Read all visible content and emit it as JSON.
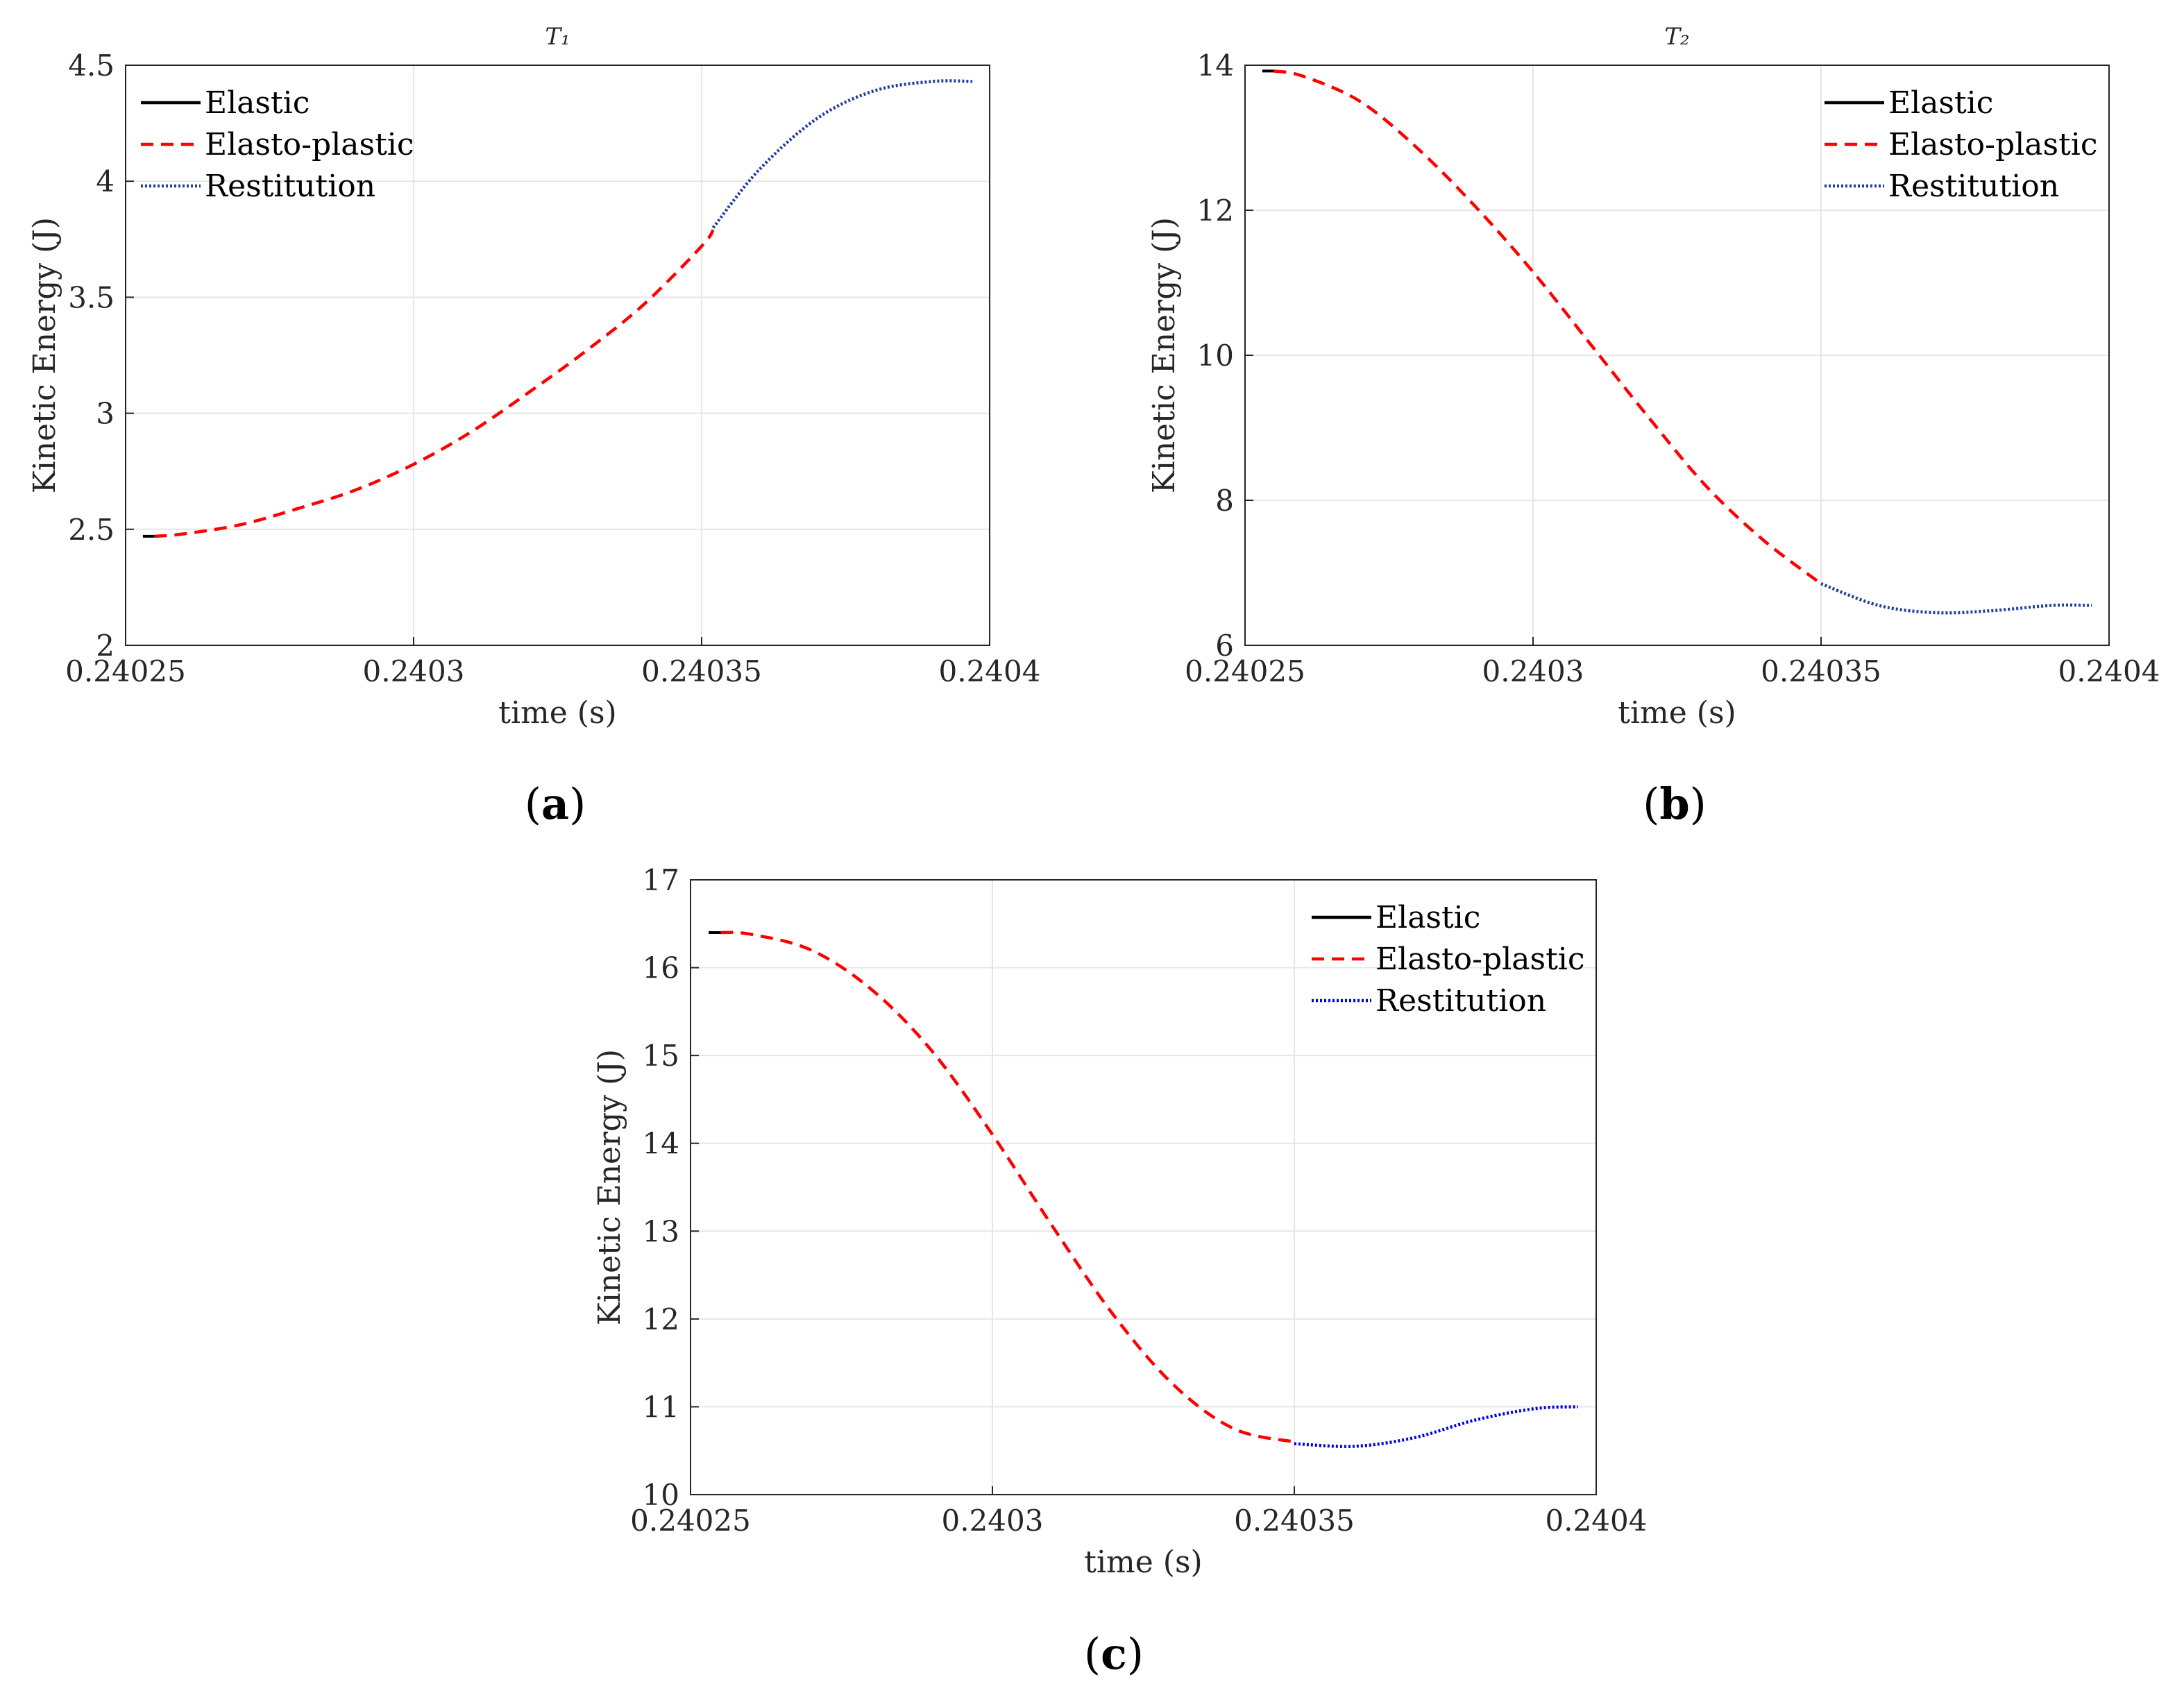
{
  "figure": {
    "captions": [
      "(a)",
      "(b)",
      "(c)"
    ],
    "caption_letters": [
      "a",
      "b",
      "c"
    ]
  },
  "chart_data": [
    {
      "type": "line",
      "panel": "(a)",
      "title": "T₁",
      "xlabel": "time (s)",
      "ylabel": "Kinetic Energy (J)",
      "xlim": [
        0.24025,
        0.2404
      ],
      "ylim": [
        2,
        4.5
      ],
      "xticks": [
        0.24025,
        0.2403,
        0.24035,
        0.2404
      ],
      "xtick_labels": [
        "0.24025",
        "0.2403",
        "0.24035",
        "0.2404"
      ],
      "yticks": [
        2,
        2.5,
        3,
        3.5,
        4,
        4.5
      ],
      "ytick_labels": [
        "2",
        "2.5",
        "3",
        "3.5",
        "4",
        "4.5"
      ],
      "grid": true,
      "legend_position": "top-left",
      "series": [
        {
          "name": "Elastic",
          "color": "#000000",
          "style": "solid",
          "x": [
            0.240253,
            0.240255
          ],
          "y": [
            2.47,
            2.47
          ]
        },
        {
          "name": "Elasto-plastic",
          "color": "#ff0000",
          "style": "dashed",
          "x": [
            0.240255,
            0.24026,
            0.24027,
            0.24028,
            0.24029,
            0.2403,
            0.24031,
            0.24032,
            0.24033,
            0.24034,
            0.24035,
            0.240352
          ],
          "y": [
            2.47,
            2.48,
            2.52,
            2.59,
            2.67,
            2.78,
            2.92,
            3.09,
            3.27,
            3.47,
            3.72,
            3.79
          ]
        },
        {
          "name": "Restitution",
          "color": "#1f3fa0",
          "style": "dotted",
          "x": [
            0.240352,
            0.24036,
            0.24037,
            0.24038,
            0.24039,
            0.240397
          ],
          "y": [
            3.8,
            4.05,
            4.27,
            4.39,
            4.43,
            4.43
          ]
        }
      ]
    },
    {
      "type": "line",
      "panel": "(b)",
      "title": "T₂",
      "xlabel": "time (s)",
      "ylabel": "Kinetic Energy (J)",
      "xlim": [
        0.24025,
        0.2404
      ],
      "ylim": [
        6,
        14
      ],
      "xticks": [
        0.24025,
        0.2403,
        0.24035,
        0.2404
      ],
      "xtick_labels": [
        "0.24025",
        "0.2403",
        "0.24035",
        "0.2404"
      ],
      "yticks": [
        6,
        8,
        10,
        12,
        14
      ],
      "ytick_labels": [
        "6",
        "8",
        "10",
        "12",
        "14"
      ],
      "grid": true,
      "legend_position": "top-right",
      "series": [
        {
          "name": "Elastic",
          "color": "#000000",
          "style": "solid",
          "x": [
            0.240253,
            0.240255
          ],
          "y": [
            13.92,
            13.92
          ]
        },
        {
          "name": "Elasto-plastic",
          "color": "#ff0000",
          "style": "dashed",
          "x": [
            0.240255,
            0.24026,
            0.24027,
            0.24028,
            0.24029,
            0.2403,
            0.24031,
            0.24032,
            0.24033,
            0.24034,
            0.24035
          ],
          "y": [
            13.92,
            13.85,
            13.5,
            12.85,
            12.05,
            11.15,
            10.15,
            9.15,
            8.2,
            7.45,
            6.85
          ]
        },
        {
          "name": "Restitution",
          "color": "#1f3fa0",
          "style": "dotted",
          "x": [
            0.24035,
            0.24036,
            0.24037,
            0.24038,
            0.24039,
            0.240397
          ],
          "y": [
            6.85,
            6.55,
            6.45,
            6.48,
            6.55,
            6.55
          ]
        }
      ]
    },
    {
      "type": "line",
      "panel": "(c)",
      "title": "",
      "xlabel": "time (s)",
      "ylabel": "Kinetic Energy (J)",
      "xlim": [
        0.24025,
        0.2404
      ],
      "ylim": [
        10,
        17
      ],
      "xticks": [
        0.24025,
        0.2403,
        0.24035,
        0.2404
      ],
      "xtick_labels": [
        "0.24025",
        "0.2403",
        "0.24035",
        "0.2404"
      ],
      "yticks": [
        10,
        11,
        12,
        13,
        14,
        15,
        16,
        17
      ],
      "ytick_labels": [
        "10",
        "11",
        "12",
        "13",
        "14",
        "15",
        "16",
        "17"
      ],
      "grid": true,
      "legend_position": "top-right",
      "series": [
        {
          "name": "Elastic",
          "color": "#000000",
          "style": "solid",
          "x": [
            0.240253,
            0.240255
          ],
          "y": [
            16.4,
            16.4
          ]
        },
        {
          "name": "Elasto-plastic",
          "color": "#ff0000",
          "style": "dashed",
          "x": [
            0.240255,
            0.24026,
            0.24027,
            0.24028,
            0.24029,
            0.2403,
            0.24031,
            0.24032,
            0.24033,
            0.24034,
            0.24035
          ],
          "y": [
            16.4,
            16.38,
            16.2,
            15.75,
            15.05,
            14.1,
            13.05,
            12.05,
            11.25,
            10.75,
            10.6
          ]
        },
        {
          "name": "Restitution",
          "color": "#0000e6",
          "style": "dotted",
          "x": [
            0.24035,
            0.24036,
            0.24037,
            0.24038,
            0.24039,
            0.240397
          ],
          "y": [
            10.58,
            10.55,
            10.65,
            10.85,
            10.98,
            11.0
          ]
        }
      ]
    }
  ]
}
